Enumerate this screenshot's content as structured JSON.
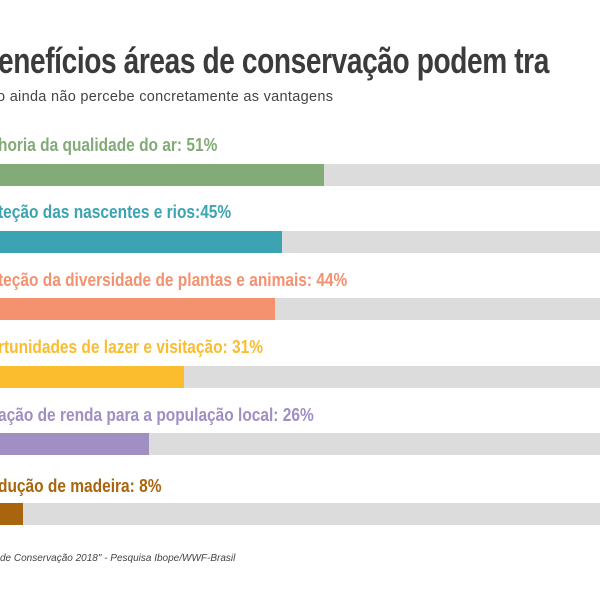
{
  "chart_data": {
    "type": "bar",
    "orientation": "horizontal",
    "title": "enefícios áreas de conservação podem tra",
    "subtitle": "o ainda não percebe concretamente as vantagens",
    "xlim": [
      0,
      100
    ],
    "grid": false,
    "bars": [
      {
        "label": "horia da qualidade do ar: 51%",
        "value": 51,
        "color": "#82ab78"
      },
      {
        "label": "teção das nascentes e rios:45%",
        "value": 45,
        "color": "#3ba3b2"
      },
      {
        "label": "teção da diversidade de plantas e animais: 44%",
        "value": 44,
        "color": "#f4916f"
      },
      {
        "label": "rtunidades de lazer e visitação: 31%",
        "value": 31,
        "color": "#fbbc2e"
      },
      {
        "label": "ação de renda para a população local: 26%",
        "value": 26,
        "color": "#a08fc3"
      },
      {
        "label": "dução de madeira: 8%",
        "value": 8,
        "color": "#a8650e"
      }
    ],
    "track_color": "#dcdcdc",
    "source": "de Conservação 2018\" - Pesquisa Ibope/WWF-Brasil"
  }
}
